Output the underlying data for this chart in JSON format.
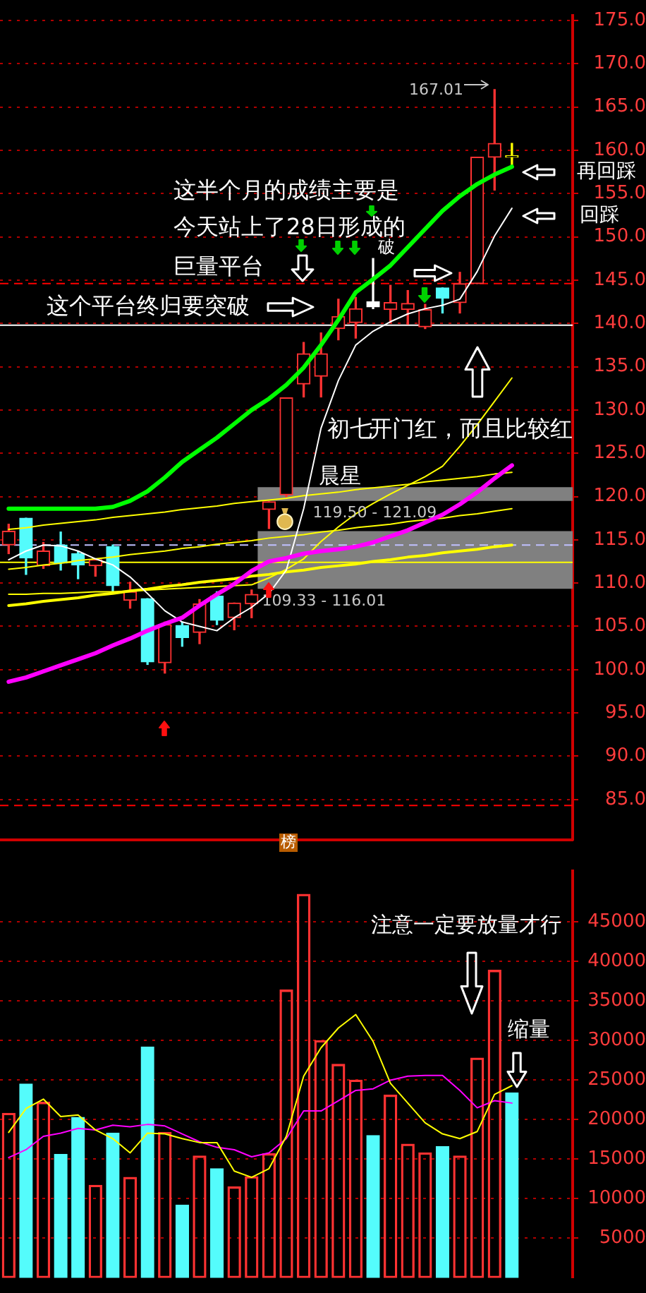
{
  "chart_data": [
    {
      "type": "candlestick",
      "categories": [
        null,
        null,
        null,
        null,
        null,
        null,
        null,
        null,
        null,
        null,
        null,
        null,
        null,
        null,
        null,
        null,
        null,
        null,
        null,
        null,
        null,
        null,
        null,
        null,
        null,
        null,
        null,
        null,
        null,
        null
      ],
      "ohlc": [
        [
          114.4,
          116.8,
          113.4,
          116.0
        ],
        [
          117.5,
          117.5,
          111.0,
          112.9
        ],
        [
          112.0,
          114.7,
          111.7,
          113.7
        ],
        [
          114.4,
          115.9,
          111.5,
          112.3
        ],
        [
          113.4,
          113.7,
          110.5,
          112.1
        ],
        [
          112.0,
          112.8,
          110.8,
          112.7
        ],
        [
          114.2,
          114.4,
          108.9,
          109.7
        ],
        [
          108.0,
          110.1,
          107.1,
          109.0
        ],
        [
          108.2,
          108.2,
          100.6,
          100.9
        ],
        [
          100.8,
          105.5,
          99.6,
          105.2
        ],
        [
          105.1,
          105.5,
          102.7,
          103.7
        ],
        [
          104.3,
          108.1,
          103.0,
          107.6
        ],
        [
          108.5,
          109.0,
          105.2,
          105.7
        ],
        [
          106.0,
          107.7,
          104.6,
          107.7
        ],
        [
          107.6,
          109.2,
          106.0,
          108.7
        ],
        [
          118.5,
          119.4,
          116.3,
          119.4
        ],
        [
          120.2,
          131.4,
          120.0,
          131.4
        ],
        [
          133.0,
          137.8,
          131.5,
          136.5
        ],
        [
          133.9,
          138.9,
          131.5,
          136.5
        ],
        [
          139.4,
          142.8,
          138.1,
          140.8
        ],
        [
          140.1,
          143.0,
          138.3,
          141.7
        ],
        [
          142.5,
          147.5,
          141.7,
          141.9
        ],
        [
          141.6,
          144.4,
          140.1,
          142.4
        ],
        [
          141.6,
          143.8,
          139.9,
          142.3
        ],
        [
          139.6,
          142.2,
          139.4,
          141.6
        ],
        [
          144.1,
          144.1,
          141.2,
          142.9
        ],
        [
          142.4,
          145.9,
          141.2,
          144.6
        ],
        [
          144.6,
          159.2,
          144.6,
          159.2
        ],
        [
          159.2,
          167.01,
          155.4,
          160.8
        ],
        [
          159.2,
          160.8,
          158.0,
          159.2
        ]
      ],
      "colors": [
        "#ff3232",
        "#54fcfc",
        "#ff3232",
        "#54fcfc",
        "#54fcfc",
        "#ff3232",
        "#54fcfc",
        "#ff3232",
        "#54fcfc",
        "#ff3232",
        "#54fcfc",
        "#ff3232",
        "#54fcfc",
        "#ff3232",
        "#ff3232",
        "#ff3232",
        "#ff3232",
        "#ff3232",
        "#ff3232",
        "#ff3232",
        "#ff3232",
        "#ffffff",
        "#ff3232",
        "#ff3232",
        "#ff3232",
        "#54fcfc",
        "#ff3232",
        "#ff3232",
        "#ff3232",
        "#ffff00"
      ],
      "series": [
        {
          "type": "line",
          "color": "#00ff00",
          "values": [
            118.6,
            118.6,
            118.6,
            118.6,
            118.6,
            118.6,
            118.8,
            119.5,
            120.6,
            122.2,
            124.0,
            125.4,
            126.8,
            128.4,
            130.0,
            131.3,
            132.9,
            134.9,
            137.5,
            140.4,
            143.6,
            145.1,
            146.7,
            148.8,
            150.9,
            153.0,
            154.7,
            156.1,
            157.2,
            158.1
          ]
        },
        {
          "type": "line",
          "color": "#ff00ff",
          "values": [
            98.6,
            99.1,
            99.8,
            100.5,
            101.2,
            101.9,
            102.8,
            103.6,
            104.5,
            105.3,
            106.0,
            107.4,
            108.7,
            109.9,
            111.4,
            112.5,
            112.9,
            113.4,
            113.7,
            113.9,
            114.2,
            114.7,
            115.4,
            116.1,
            117.0,
            117.9,
            119.1,
            120.5,
            122.1,
            123.6
          ]
        },
        {
          "type": "line",
          "color": "#ffffff",
          "values": [
            112.7,
            113.7,
            114.4,
            114.3,
            113.7,
            112.8,
            112.1,
            110.7,
            108.8,
            106.8,
            105.5,
            105.0,
            104.5,
            106.0,
            107.2,
            108.8,
            111.5,
            118.6,
            127.9,
            133.4,
            137.5,
            139.1,
            140.2,
            141.1,
            141.7,
            142.1,
            142.8,
            146.0,
            150.1,
            153.3
          ]
        },
        {
          "type": "line",
          "color": "#ffff00",
          "values": [
            108.7,
            108.7,
            108.8,
            108.8,
            108.9,
            109.0,
            109.0,
            109.1,
            109.2,
            109.3,
            109.4,
            109.5,
            109.6,
            109.7,
            109.8,
            110.6,
            111.6,
            112.8,
            114.8,
            116.5,
            118.0,
            119.2,
            120.3,
            121.3,
            122.3,
            123.5,
            125.8,
            128.3,
            131.0,
            133.7
          ]
        },
        {
          "type": "line",
          "color": "#ffff00",
          "values": [
            116.2,
            116.4,
            116.7,
            116.9,
            117.1,
            117.3,
            117.6,
            117.8,
            118.0,
            118.2,
            118.5,
            118.7,
            118.9,
            119.2,
            119.4,
            119.6,
            119.8,
            120.1,
            120.3,
            120.5,
            120.8,
            121.0,
            121.2,
            121.4,
            121.7,
            121.9,
            122.1,
            122.3,
            122.6,
            122.8
          ]
        },
        {
          "type": "line",
          "color": "#ffff00",
          "values": [
            111.6,
            111.8,
            112.1,
            112.3,
            112.6,
            112.8,
            113.0,
            113.3,
            113.5,
            113.7,
            114.0,
            114.2,
            114.5,
            114.7,
            114.9,
            115.2,
            115.4,
            115.6,
            115.9,
            116.1,
            116.4,
            116.6,
            116.8,
            117.1,
            117.3,
            117.5,
            117.8,
            118.0,
            118.3,
            118.6
          ]
        },
        {
          "type": "line",
          "color": "#ffff00",
          "values": [
            107.4,
            107.6,
            107.9,
            108.1,
            108.3,
            108.6,
            108.8,
            109.1,
            109.3,
            109.6,
            109.8,
            110.1,
            110.3,
            110.5,
            110.8,
            111.0,
            111.3,
            111.5,
            111.8,
            112.0,
            112.2,
            112.5,
            112.7,
            113.0,
            113.2,
            113.5,
            113.7,
            113.9,
            114.2,
            114.4
          ]
        }
      ],
      "bands": [
        {
          "axis": "y",
          "from": 119.5,
          "to": 121.09,
          "label": "119.50 - 121.09",
          "color": "#808080"
        },
        {
          "axis": "y",
          "from": 109.33,
          "to": 116.01,
          "label": "109.33 - 116.01",
          "color": "#808080"
        }
      ],
      "ref_lines": [
        {
          "axis": "y",
          "value": 144.6,
          "color": "#ff0000",
          "line_style": "dashed"
        },
        {
          "axis": "y",
          "value": 139.8,
          "color": "#ffffff",
          "line_style": "solid"
        },
        {
          "axis": "y",
          "value": 114.4,
          "color": "#c0c0ff",
          "line_style": "dashed"
        },
        {
          "axis": "y",
          "value": 112.4,
          "color": "#ffff00",
          "line_style": "solid"
        },
        {
          "axis": "y",
          "value": 84.3,
          "color": "#ff0000",
          "line_style": "dashed"
        }
      ],
      "annotations": [
        "167.01",
        "这半个月的成绩主要是",
        "今天站上了28日形成的",
        "巨量平台",
        "这个平台终归要突破",
        "晨星",
        "初七",
        "开门红，而且比较红",
        "再回踩",
        "回踩",
        "榜",
        "破"
      ],
      "ylim": [
        80.3,
        175.6
      ],
      "yticks": [
        {
          "value": 85,
          "label": "85.0"
        },
        {
          "value": 90,
          "label": "90.0"
        },
        {
          "value": 95,
          "label": "95.0"
        },
        {
          "value": 100,
          "label": "100.0"
        },
        {
          "value": 105,
          "label": "105.0"
        },
        {
          "value": 110,
          "label": "110.0"
        },
        {
          "value": 115,
          "label": "115.0"
        },
        {
          "value": 120,
          "label": "120.0"
        },
        {
          "value": 125,
          "label": "125.0"
        },
        {
          "value": 130,
          "label": "130.0"
        },
        {
          "value": 135,
          "label": "135.0"
        },
        {
          "value": 140,
          "label": "140.0"
        },
        {
          "value": 145,
          "label": "145.0"
        },
        {
          "value": 150,
          "label": "150.0"
        },
        {
          "value": 155,
          "label": "155.0"
        },
        {
          "value": 160,
          "label": "160.0"
        },
        {
          "value": 165,
          "label": "165.0"
        },
        {
          "value": 170,
          "label": "170.0"
        },
        {
          "value": 175,
          "label": "175.0"
        }
      ],
      "grid": "y"
    },
    {
      "type": "bar",
      "categories": [
        null,
        null,
        null,
        null,
        null,
        null,
        null,
        null,
        null,
        null,
        null,
        null,
        null,
        null,
        null,
        null,
        null,
        null,
        null,
        null,
        null,
        null,
        null,
        null,
        null,
        null,
        null,
        null,
        null,
        null
      ],
      "series": [
        {
          "type": "bar",
          "values": [
            20800,
            24500,
            22200,
            15600,
            20300,
            11700,
            18300,
            12700,
            29200,
            18400,
            9200,
            15400,
            13800,
            11500,
            12800,
            15700,
            36400,
            48500,
            30000,
            27000,
            25000,
            18000,
            23100,
            16900,
            15800,
            16600,
            15400,
            27800,
            38900,
            23400
          ],
          "colors": [
            "#ff3232",
            "#54fcfc",
            "#ff3232",
            "#54fcfc",
            "#54fcfc",
            "#ff3232",
            "#54fcfc",
            "#ff3232",
            "#54fcfc",
            "#ff3232",
            "#54fcfc",
            "#ff3232",
            "#54fcfc",
            "#ff3232",
            "#ff3232",
            "#ff3232",
            "#ff3232",
            "#ff3232",
            "#ff3232",
            "#ff3232",
            "#ff3232",
            "#54fcfc",
            "#ff3232",
            "#ff3232",
            "#ff3232",
            "#54fcfc",
            "#ff3232",
            "#ff3232",
            "#ff3232",
            "#54fcfc"
          ]
        },
        {
          "type": "line",
          "color": "#ffff00",
          "values": [
            18400,
            21400,
            22600,
            20400,
            20600,
            18700,
            17600,
            15800,
            18300,
            18200,
            17600,
            17100,
            17100,
            13500,
            12700,
            13800,
            17900,
            25500,
            29100,
            31600,
            33300,
            29900,
            24600,
            22100,
            19600,
            18200,
            17600,
            18500,
            23200,
            24300
          ]
        },
        {
          "type": "line",
          "color": "#ff00ff",
          "values": [
            15200,
            16200,
            17900,
            18300,
            18900,
            18700,
            19300,
            19100,
            19400,
            19200,
            18200,
            17200,
            16500,
            16200,
            15300,
            15800,
            17600,
            21100,
            21100,
            22400,
            23700,
            23900,
            25000,
            25500,
            25600,
            25600,
            23700,
            21500,
            22400,
            22100
          ]
        }
      ],
      "annotations": [
        "注意一定要放量才行",
        "缩量"
      ],
      "ylim": [
        0,
        51500
      ],
      "yticks": [
        5000,
        10000,
        15000,
        20000,
        25000,
        30000,
        35000,
        40000,
        45000
      ],
      "grid": "y"
    }
  ]
}
